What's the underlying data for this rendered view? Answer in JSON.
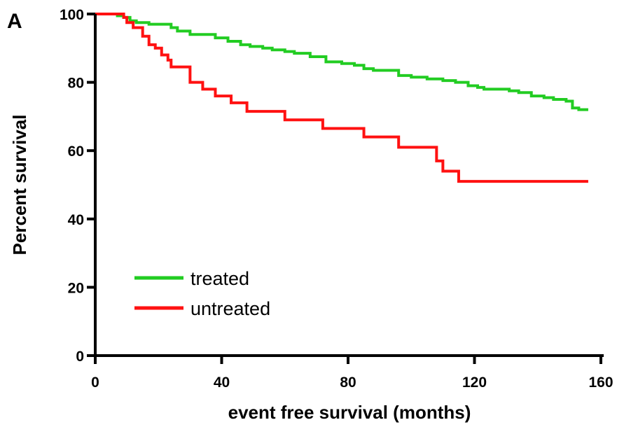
{
  "panel_label": "A",
  "chart_data": {
    "type": "line",
    "title": "",
    "xlabel": "event free survival (months)",
    "ylabel": "Percent survival",
    "xlim": [
      0,
      160
    ],
    "ylim": [
      0,
      100
    ],
    "x_ticks": [
      0,
      40,
      80,
      120,
      160
    ],
    "y_ticks": [
      0,
      20,
      40,
      60,
      80,
      100
    ],
    "grid": false,
    "legend_position": "bottom-left",
    "series": [
      {
        "name": "treated",
        "color": "#22cc22",
        "step": true,
        "x": [
          0,
          7,
          9,
          11,
          13,
          17,
          24,
          26,
          30,
          38,
          42,
          46,
          49,
          53,
          56,
          60,
          63,
          68,
          73,
          78,
          82,
          85,
          88,
          96,
          100,
          105,
          110,
          114,
          118,
          121,
          123,
          131,
          134,
          138,
          142,
          145,
          149,
          151,
          153,
          156
        ],
        "y": [
          100,
          99.5,
          99,
          98,
          97.5,
          97,
          96,
          95,
          94,
          93,
          92,
          91,
          90.5,
          90,
          89.5,
          89,
          88.5,
          87.5,
          86,
          85.5,
          85,
          84,
          83.5,
          82,
          81.5,
          81,
          80.5,
          80,
          79,
          78.5,
          78,
          77.5,
          77,
          76,
          75.5,
          75,
          74.5,
          72.5,
          72,
          72
        ]
      },
      {
        "name": "untreated",
        "color": "#ff1111",
        "step": true,
        "x": [
          0,
          9,
          10,
          12,
          15,
          17,
          19,
          21,
          23,
          24,
          30,
          34,
          38,
          43,
          48,
          60,
          72,
          85,
          96,
          108,
          110,
          115,
          156
        ],
        "y": [
          100,
          99,
          97.5,
          96,
          93.5,
          91,
          90,
          88,
          86.5,
          84.5,
          80,
          78,
          76,
          74,
          71.5,
          69,
          66.5,
          64,
          61,
          57,
          54,
          51,
          51
        ]
      }
    ]
  }
}
